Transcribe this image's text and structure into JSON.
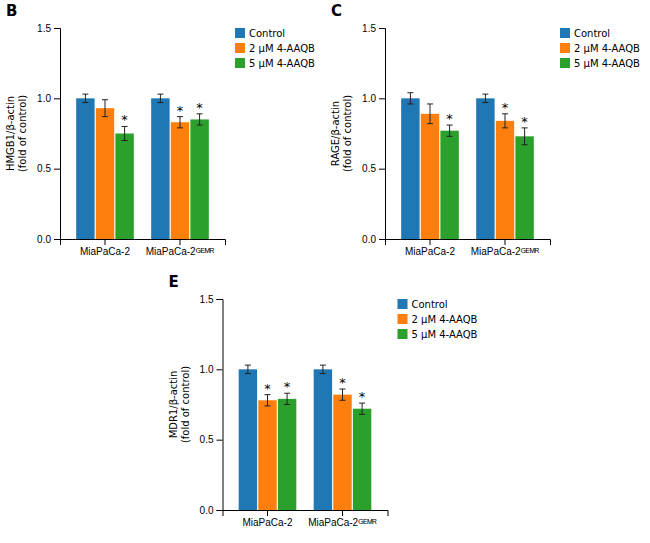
{
  "chart_data": [
    {
      "type": "bar",
      "title": "B",
      "ylabel": "HMGB1/β-actin\n(fold of control)",
      "categories": [
        "MiaPaCa-2",
        "MiaPaCa-2ᴳᴱᴹᴿ"
      ],
      "series": [
        {
          "name": "Control",
          "values": [
            1.0,
            1.0
          ],
          "errors": [
            0.03,
            0.03
          ],
          "significance": [
            null,
            null
          ]
        },
        {
          "name": "2 μM 4-AAQB",
          "values": [
            0.93,
            0.83
          ],
          "errors": [
            0.06,
            0.04
          ],
          "significance": [
            null,
            "*"
          ]
        },
        {
          "name": "5 μM 4-AAQB",
          "values": [
            0.75,
            0.85
          ],
          "errors": [
            0.05,
            0.04
          ],
          "significance": [
            "*",
            "*"
          ]
        }
      ],
      "ylim": [
        0.0,
        1.5
      ],
      "yticks": [
        {
          "value": 0.0,
          "label": "0.0"
        },
        0.5,
        {
          "value": 1.0,
          "label": "1.0"
        },
        1.5
      ],
      "legend": "upper right"
    },
    {
      "type": "bar",
      "title": "C",
      "ylabel": "RAGE/β-actin\n(fold of control)",
      "categories": [
        "MiaPaCa-2",
        "MiaPaCa-2ᴳᴱᴹᴿ"
      ],
      "series": [
        {
          "name": "Control",
          "values": [
            1.0,
            1.0
          ],
          "errors": [
            0.04,
            0.03
          ],
          "significance": [
            null,
            null
          ]
        },
        {
          "name": "2 μM 4-AAQB",
          "values": [
            0.89,
            0.84
          ],
          "errors": [
            0.07,
            0.05
          ],
          "significance": [
            null,
            "*"
          ]
        },
        {
          "name": "5 μM 4-AAQB",
          "values": [
            0.77,
            0.73
          ],
          "errors": [
            0.04,
            0.06
          ],
          "significance": [
            "*",
            "*"
          ]
        }
      ],
      "ylim": [
        0.0,
        1.5
      ],
      "yticks": [
        {
          "value": 0.0,
          "label": "0.0"
        },
        0.5,
        {
          "value": 1.0,
          "label": "1.0"
        },
        1.5
      ],
      "legend": "upper right"
    },
    {
      "type": "bar",
      "title": "E",
      "ylabel": "MDR1/β-actin\n(fold of control)",
      "categories": [
        "MiaPaCa-2",
        "MiaPaCa-2ᴳᴱᴹᴿ"
      ],
      "series": [
        {
          "name": "Control",
          "values": [
            1.0,
            1.0
          ],
          "errors": [
            0.03,
            0.03
          ],
          "significance": [
            null,
            null
          ]
        },
        {
          "name": "2 μM 4-AAQB",
          "values": [
            0.78,
            0.82
          ],
          "errors": [
            0.04,
            0.04
          ],
          "significance": [
            "*",
            "*"
          ]
        },
        {
          "name": "5 μM 4-AAQB",
          "values": [
            0.79,
            0.72
          ],
          "errors": [
            0.04,
            0.04
          ],
          "significance": [
            "*",
            "*"
          ]
        }
      ],
      "ylim": [
        0.0,
        1.5
      ],
      "yticks": [
        {
          "value": 0.0,
          "label": "0.0"
        },
        0.5,
        {
          "value": 1.0,
          "label": "1.0"
        },
        1.5
      ],
      "legend": "upper right"
    }
  ]
}
